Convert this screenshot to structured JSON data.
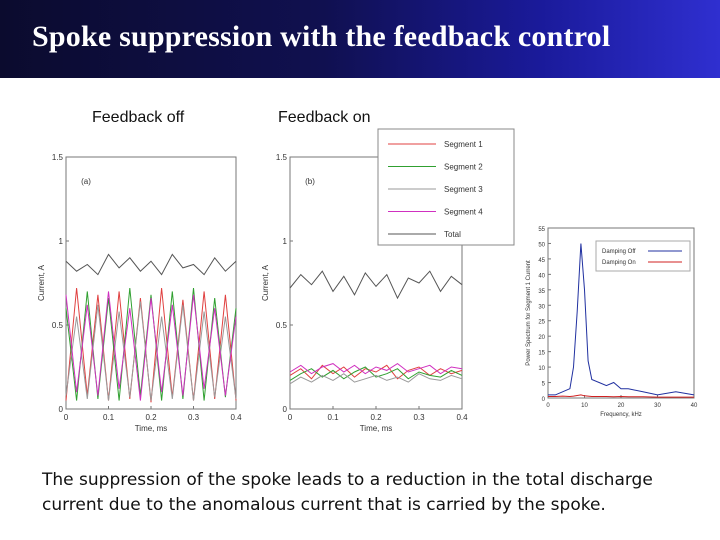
{
  "slide": {
    "title": "Spoke suppression with the feedback control",
    "caption_off": "Feedback off",
    "caption_on": "Feedback on",
    "description": "The suppression of the spoke leads to a reduction in the total discharge current due to the anomalous current that is carried by the spoke."
  },
  "colors": {
    "banner_dark": "#0b0b2e",
    "banner_light": "#2f2fd0",
    "segment1": "#e04040",
    "segment2": "#30a030",
    "segment3": "#9a9a9a",
    "segment4": "#d030c0",
    "total": "#555555",
    "damping_off": "#2030a0",
    "damping_on": "#d02020"
  },
  "chart_data": [
    {
      "type": "line",
      "panel_label": "(a)",
      "xlabel": "Time, ms",
      "ylabel": "Current, A",
      "xlim": [
        0,
        0.4
      ],
      "ylim": [
        0,
        1.5
      ],
      "xticks": [
        "0",
        "0.1",
        "0.2",
        "0.3",
        "0.4"
      ],
      "yticks": [
        "0",
        "0.5",
        "1",
        "1.5"
      ],
      "x": [
        0,
        0.025,
        0.05,
        0.075,
        0.1,
        0.125,
        0.15,
        0.175,
        0.2,
        0.225,
        0.25,
        0.275,
        0.3,
        0.325,
        0.35,
        0.375,
        0.4
      ],
      "series": [
        {
          "name": "Segment 1",
          "values": [
            0.05,
            0.72,
            0.08,
            0.68,
            0.05,
            0.7,
            0.06,
            0.66,
            0.04,
            0.72,
            0.07,
            0.65,
            0.05,
            0.7,
            0.06,
            0.68,
            0.05
          ]
        },
        {
          "name": "Segment 2",
          "values": [
            0.6,
            0.05,
            0.7,
            0.06,
            0.66,
            0.05,
            0.72,
            0.08,
            0.68,
            0.05,
            0.7,
            0.06,
            0.72,
            0.05,
            0.66,
            0.07,
            0.6
          ]
        },
        {
          "name": "Segment 3",
          "values": [
            0.08,
            0.55,
            0.06,
            0.62,
            0.05,
            0.58,
            0.07,
            0.64,
            0.05,
            0.55,
            0.06,
            0.62,
            0.05,
            0.58,
            0.07,
            0.55,
            0.06
          ]
        },
        {
          "name": "Segment 4",
          "values": [
            0.68,
            0.1,
            0.62,
            0.08,
            0.7,
            0.12,
            0.6,
            0.05,
            0.66,
            0.1,
            0.62,
            0.08,
            0.68,
            0.12,
            0.6,
            0.08,
            0.55
          ]
        },
        {
          "name": "Total",
          "values": [
            0.88,
            0.82,
            0.86,
            0.8,
            0.92,
            0.84,
            0.9,
            0.82,
            0.88,
            0.8,
            0.92,
            0.84,
            0.86,
            0.8,
            0.9,
            0.82,
            0.88
          ]
        }
      ]
    },
    {
      "type": "line",
      "panel_label": "(b)",
      "xlabel": "Time, ms",
      "ylabel": "Current, A",
      "xlim": [
        0,
        0.4
      ],
      "ylim": [
        0,
        1.5
      ],
      "xticks": [
        "0",
        "0.1",
        "0.2",
        "0.3",
        "0.4"
      ],
      "yticks": [
        "0",
        "0.5",
        "1",
        "1.5"
      ],
      "legend_position": "top-right",
      "x": [
        0,
        0.025,
        0.05,
        0.075,
        0.1,
        0.125,
        0.15,
        0.175,
        0.2,
        0.225,
        0.25,
        0.275,
        0.3,
        0.325,
        0.35,
        0.375,
        0.4
      ],
      "series": [
        {
          "name": "Segment 1",
          "values": [
            0.2,
            0.24,
            0.18,
            0.26,
            0.21,
            0.25,
            0.19,
            0.24,
            0.22,
            0.26,
            0.18,
            0.23,
            0.25,
            0.2,
            0.24,
            0.21,
            0.23
          ]
        },
        {
          "name": "Segment 2",
          "values": [
            0.17,
            0.21,
            0.24,
            0.19,
            0.23,
            0.18,
            0.22,
            0.25,
            0.19,
            0.21,
            0.24,
            0.18,
            0.22,
            0.2,
            0.19,
            0.23,
            0.2
          ]
        },
        {
          "name": "Segment 3",
          "values": [
            0.15,
            0.19,
            0.16,
            0.2,
            0.17,
            0.21,
            0.16,
            0.18,
            0.2,
            0.17,
            0.19,
            0.16,
            0.21,
            0.18,
            0.17,
            0.2,
            0.18
          ]
        },
        {
          "name": "Segment 4",
          "values": [
            0.22,
            0.26,
            0.21,
            0.25,
            0.27,
            0.22,
            0.26,
            0.21,
            0.25,
            0.23,
            0.27,
            0.22,
            0.24,
            0.26,
            0.21,
            0.25,
            0.24
          ]
        },
        {
          "name": "Total",
          "values": [
            0.72,
            0.8,
            0.74,
            0.82,
            0.7,
            0.79,
            0.68,
            0.81,
            0.73,
            0.8,
            0.66,
            0.78,
            0.75,
            0.82,
            0.7,
            0.79,
            0.74
          ]
        }
      ]
    },
    {
      "type": "line",
      "xlabel": "Frequency, kHz",
      "ylabel": "Power Spectrum for Segment 1 Current",
      "xlim": [
        0,
        40
      ],
      "ylim": [
        0,
        55
      ],
      "xticks": [
        "0",
        "10",
        "20",
        "30",
        "40"
      ],
      "yticks": [
        "0",
        "5",
        "10",
        "15",
        "20",
        "25",
        "30",
        "35",
        "40",
        "45",
        "50",
        "55"
      ],
      "legend_position": "top-right",
      "x": [
        0,
        2,
        4,
        6,
        7,
        8,
        9,
        10,
        11,
        12,
        14,
        16,
        18,
        20,
        22,
        26,
        30,
        35,
        40
      ],
      "series": [
        {
          "name": "Damping Off",
          "values": [
            1,
            1,
            2,
            3,
            10,
            28,
            50,
            35,
            12,
            6,
            5,
            4,
            5,
            3,
            3,
            2,
            1,
            2,
            1
          ]
        },
        {
          "name": "Damping On",
          "values": [
            0.5,
            0.5,
            0.6,
            0.5,
            0.6,
            0.8,
            1,
            0.7,
            0.6,
            0.5,
            0.5,
            0.5,
            0.4,
            0.5,
            0.4,
            0.4,
            0.3,
            0.3,
            0.3
          ]
        }
      ]
    }
  ]
}
